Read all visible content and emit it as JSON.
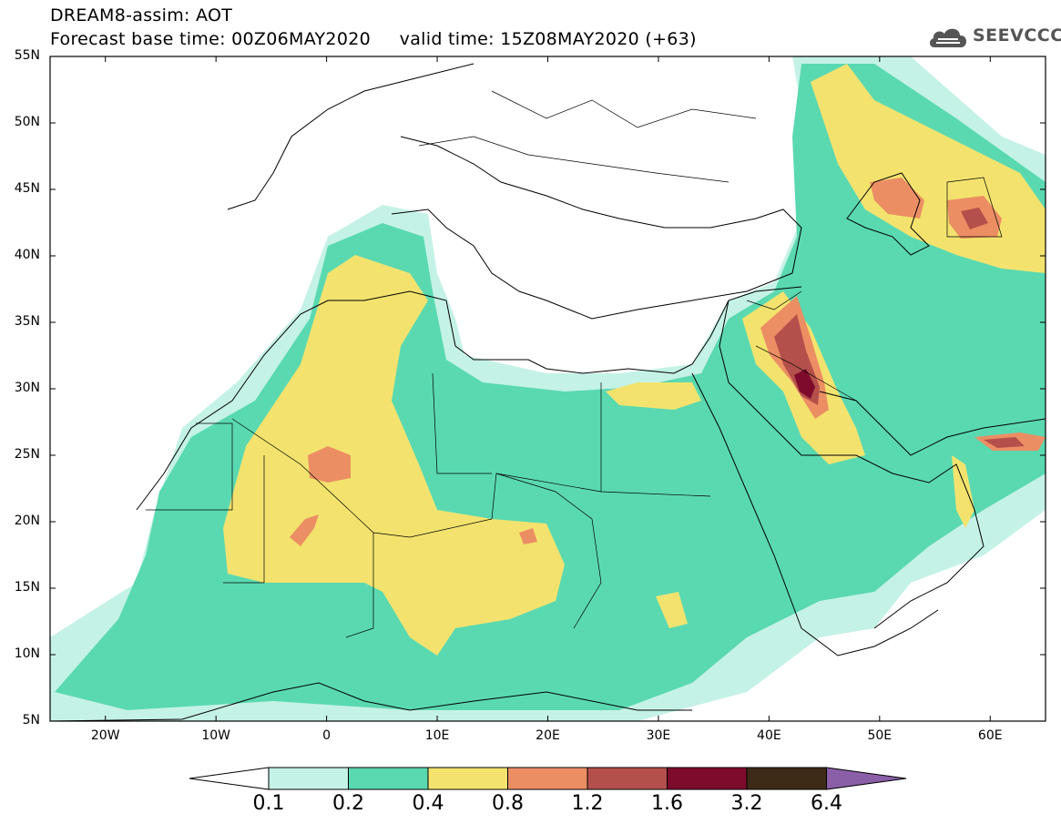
{
  "header": {
    "title_line1": "DREAM8-assim: AOT",
    "title_line2": "Forecast base time: 00Z06MAY2020     valid time: 15Z08MAY2020 (+63)"
  },
  "logo": {
    "text": "SEEVCCC",
    "icon": "cloud-icon"
  },
  "map": {
    "lat_labels": [
      "55N",
      "50N",
      "45N",
      "40N",
      "35N",
      "30N",
      "25N",
      "20N",
      "15N",
      "10N",
      "5N"
    ],
    "lon_labels": [
      "20W",
      "10W",
      "0",
      "10E",
      "20E",
      "30E",
      "40E",
      "50E",
      "60E"
    ],
    "extent": {
      "lon": [
        -25,
        65
      ],
      "lat": [
        5,
        55
      ]
    }
  },
  "colorbar": {
    "labels": [
      "0.1",
      "0.2",
      "0.4",
      "0.8",
      "1.2",
      "1.6",
      "3.2",
      "6.4"
    ],
    "colors": [
      "#c5f2e6",
      "#5ad9b1",
      "#f3e36e",
      "#ec8e63",
      "#b4504b",
      "#7e0a2c",
      "#3d2a17"
    ],
    "over_color": "#8a5fa8",
    "under_color": "#ffffff"
  }
}
